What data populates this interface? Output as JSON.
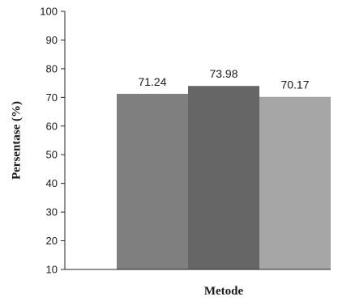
{
  "chart_data": {
    "type": "bar",
    "title": "",
    "xlabel": "Metode",
    "ylabel": "Persentase (%)",
    "ylim": [
      10,
      100
    ],
    "yticks": [
      10,
      20,
      30,
      40,
      50,
      60,
      70,
      80,
      90,
      100
    ],
    "grid": false,
    "legend": "none",
    "bars": [
      {
        "value": 71.24,
        "label": "71.24",
        "color": "#7f7f7f"
      },
      {
        "value": 73.98,
        "label": "73.98",
        "color": "#666666"
      },
      {
        "value": 70.17,
        "label": "70.17",
        "color": "#a6a6a6"
      }
    ]
  }
}
